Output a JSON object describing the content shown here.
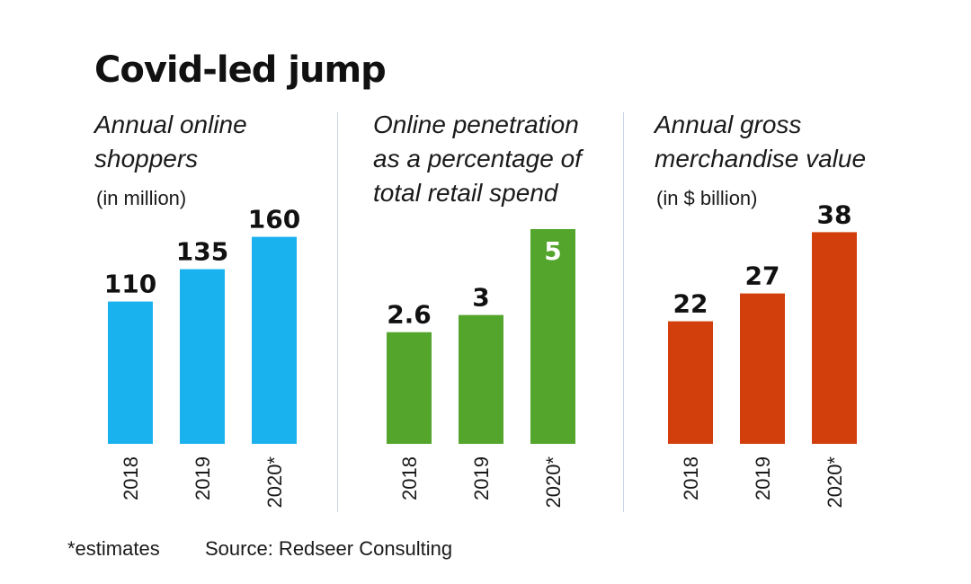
{
  "title": "Covid-led jump",
  "footnote": "*estimates",
  "source": "Source: Redseer Consulting",
  "chart_data": [
    {
      "type": "bar",
      "title": "Annual online\nshoppers",
      "unit": "(in million)",
      "categories": [
        "2018",
        "2019",
        "2020*"
      ],
      "values": [
        110,
        135,
        160
      ],
      "value_labels": [
        "110",
        "135",
        "160"
      ],
      "color": "#19b2ef",
      "label_color": "#111111",
      "label_inside_last": false
    },
    {
      "type": "bar",
      "title": "Online penetration\nas a percentage of\ntotal retail spend",
      "unit": "",
      "categories": [
        "2018",
        "2019",
        "2020*"
      ],
      "values": [
        2.6,
        3,
        5
      ],
      "value_labels": [
        "2.6",
        "3",
        "5"
      ],
      "color": "#54a52c",
      "label_color": "#111111",
      "label_inside_last": true,
      "inside_label_color": "#ffffff"
    },
    {
      "type": "bar",
      "title": "Annual gross\nmerchandise value",
      "unit": "(in $ billion)",
      "categories": [
        "2018",
        "2019",
        "2020*"
      ],
      "values": [
        22,
        27,
        38
      ],
      "value_labels": [
        "22",
        "27",
        "38"
      ],
      "color": "#d23e0c",
      "label_color": "#111111",
      "label_inside_last": false
    }
  ]
}
